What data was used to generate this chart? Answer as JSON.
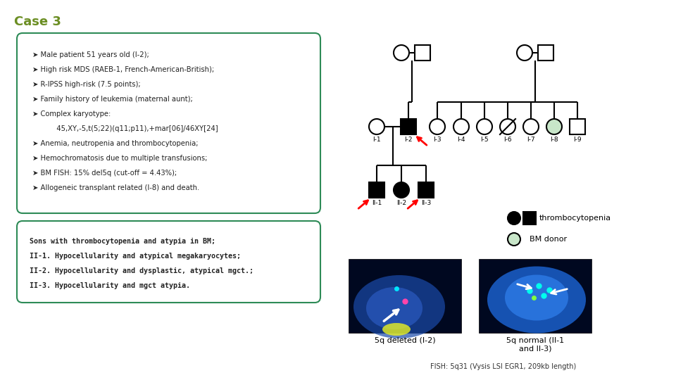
{
  "title": "Case 3",
  "title_color": "#6b8e23",
  "title_fontsize": 13,
  "background_color": "#ffffff",
  "box1_text_lines": [
    "➤ Male patient 51 years old (I-2);",
    "➤ High risk MDS (RAEB-1, French-American-British);",
    "➤ R-IPSS high-risk (7.5 points);",
    "➤ Family history of leukemia (maternal aunt);",
    "➤ Complex karyotype:",
    "           45,XY,-5,t(5;22)(q11;p11),+mar[06]/46XY[24]",
    "➤ Anemia, neutropenia and thrombocytopenia;",
    "➤ Hemochromatosis due to multiple transfusions;",
    "➤ BM FISH: 15% del5q (cut-off = 4.43%);",
    "➤ Allogeneic transplant related (I-8) and death."
  ],
  "box2_text_lines": [
    "Sons with thrombocytopenia and atypia in BM;",
    "II-1. Hypocellularity and atypical megakaryocytes;",
    "II-2. Hypocellularity and dysplastic, atypical mgct.;",
    "II-3. Hypocellularity and mgct atypia."
  ],
  "legend_thrombocytopenia": "thrombocytopenia",
  "legend_bm_donor": "BM donor",
  "caption_left": "5q deleted (I-2)",
  "caption_right": "5q normal (II-1\nand II-3)",
  "fish_caption": "FISH: 5q31 (Vysis LSI EGR1, 209kb length)",
  "box_border_color": "#2e8b57",
  "text_color": "#222222"
}
